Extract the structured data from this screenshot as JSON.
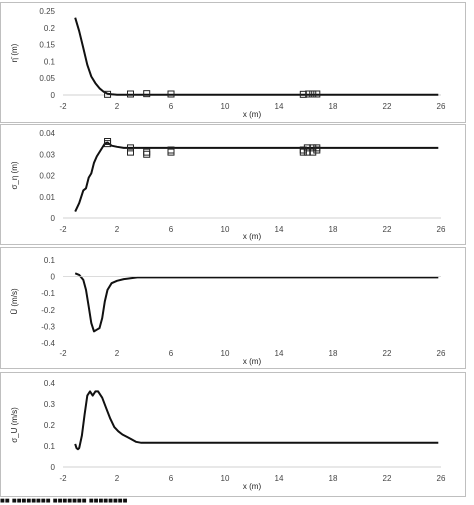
{
  "chart_data": [
    {
      "type": "line",
      "ylabel": "η̄ (m)",
      "xlabel": "x (m)",
      "xlim": [
        -2,
        26
      ],
      "ylim": [
        0,
        0.25
      ],
      "xticks": [
        "-2",
        "2",
        "6",
        "10",
        "14",
        "18",
        "22",
        "26"
      ],
      "yticks": [
        "0",
        "0.05",
        "0.1",
        "0.15",
        "0.2",
        "0.25"
      ],
      "series": [
        {
          "style": "line",
          "x": [
            -1.1,
            -0.8,
            -0.5,
            -0.2,
            0.1,
            0.4,
            0.7,
            1.0,
            1.3,
            1.6,
            2.0,
            3.0,
            4.0,
            6.0,
            10,
            14,
            18,
            22,
            25.8
          ],
          "y": [
            0.23,
            0.19,
            0.14,
            0.09,
            0.055,
            0.035,
            0.02,
            0.01,
            0.004,
            0.002,
            0.001,
            0.001,
            0.001,
            0.001,
            0.001,
            0.001,
            0.001,
            0.001,
            0.001
          ]
        },
        {
          "style": "markers",
          "x": [
            1.3,
            3.0,
            4.2,
            6.0,
            15.8,
            16.2,
            16.5,
            16.8
          ],
          "y": [
            0.002,
            0.003,
            0.004,
            0.003,
            0.002,
            0.003,
            0.003,
            0.003
          ]
        }
      ]
    },
    {
      "type": "line",
      "ylabel": "σ_η (m)",
      "xlabel": "x (m)",
      "xlim": [
        -2,
        26
      ],
      "ylim": [
        0,
        0.04
      ],
      "xticks": [
        "-2",
        "2",
        "6",
        "10",
        "14",
        "18",
        "22",
        "26"
      ],
      "yticks": [
        "0",
        "0.01",
        "0.02",
        "0.03",
        "0.04"
      ],
      "series": [
        {
          "style": "line",
          "x": [
            -1.1,
            -0.8,
            -0.5,
            -0.3,
            -0.1,
            0.1,
            0.3,
            0.5,
            0.8,
            1.1,
            1.3,
            1.6,
            2.0,
            2.5,
            3.0,
            4.0,
            6.0,
            10,
            14,
            18,
            22,
            25.8
          ],
          "y": [
            0.003,
            0.007,
            0.013,
            0.014,
            0.019,
            0.021,
            0.026,
            0.029,
            0.032,
            0.035,
            0.0355,
            0.034,
            0.0335,
            0.033,
            0.033,
            0.033,
            0.033,
            0.033,
            0.033,
            0.033,
            0.033,
            0.033
          ]
        },
        {
          "style": "markers",
          "x": [
            1.3,
            1.3,
            3.0,
            3.0,
            4.2,
            4.2,
            6.0,
            6.0,
            15.8,
            15.8,
            16.1,
            16.1,
            16.5,
            16.5,
            16.8,
            16.8
          ],
          "y": [
            0.036,
            0.035,
            0.033,
            0.031,
            0.031,
            0.03,
            0.032,
            0.031,
            0.032,
            0.031,
            0.033,
            0.031,
            0.033,
            0.031,
            0.033,
            0.032
          ]
        }
      ]
    },
    {
      "type": "line",
      "ylabel": "Ū (m/s)",
      "xlabel": "x (m)",
      "xlim": [
        -2,
        26
      ],
      "ylim": [
        -0.4,
        0.1
      ],
      "xticks": [
        "-2",
        "2",
        "6",
        "10",
        "14",
        "18",
        "22",
        "26"
      ],
      "yticks": [
        "0.1",
        "0",
        "-0.1",
        "-0.2",
        "-0.3",
        "-0.4"
      ],
      "series": [
        {
          "style": "line",
          "x": [
            -1.1,
            -0.8,
            -0.5,
            -0.3,
            -0.1,
            0.1,
            0.3,
            0.5,
            0.7,
            0.9,
            1.1,
            1.3,
            1.6,
            2.0,
            2.5,
            3.0,
            3.5,
            4.0,
            6.0,
            10,
            14,
            18,
            22,
            25.8
          ],
          "y": [
            0.02,
            0.01,
            -0.02,
            -0.08,
            -0.18,
            -0.28,
            -0.33,
            -0.32,
            -0.31,
            -0.25,
            -0.15,
            -0.08,
            -0.04,
            -0.025,
            -0.015,
            -0.01,
            -0.005,
            -0.005,
            -0.005,
            -0.005,
            -0.005,
            -0.005,
            -0.005,
            -0.005
          ]
        }
      ]
    },
    {
      "type": "line",
      "ylabel": "σ_U (m/s)",
      "xlabel": "x (m)",
      "xlim": [
        -2,
        26
      ],
      "ylim": [
        0,
        0.4
      ],
      "xticks": [
        "-2",
        "2",
        "6",
        "10",
        "14",
        "18",
        "22",
        "26"
      ],
      "yticks": [
        "0",
        "0.1",
        "0.2",
        "0.3",
        "0.4"
      ],
      "series": [
        {
          "style": "line",
          "x": [
            -1.1,
            -1.0,
            -0.9,
            -0.8,
            -0.6,
            -0.4,
            -0.2,
            0.0,
            0.2,
            0.4,
            0.6,
            0.9,
            1.2,
            1.5,
            1.8,
            2.1,
            2.4,
            2.7,
            3.0,
            3.4,
            3.8,
            6.0,
            10,
            14,
            18,
            22,
            25.8
          ],
          "y": [
            0.11,
            0.09,
            0.085,
            0.09,
            0.15,
            0.25,
            0.34,
            0.36,
            0.34,
            0.36,
            0.36,
            0.33,
            0.28,
            0.23,
            0.19,
            0.17,
            0.155,
            0.145,
            0.135,
            0.12,
            0.115,
            0.115,
            0.115,
            0.115,
            0.115,
            0.115,
            0.115
          ]
        }
      ]
    }
  ]
}
